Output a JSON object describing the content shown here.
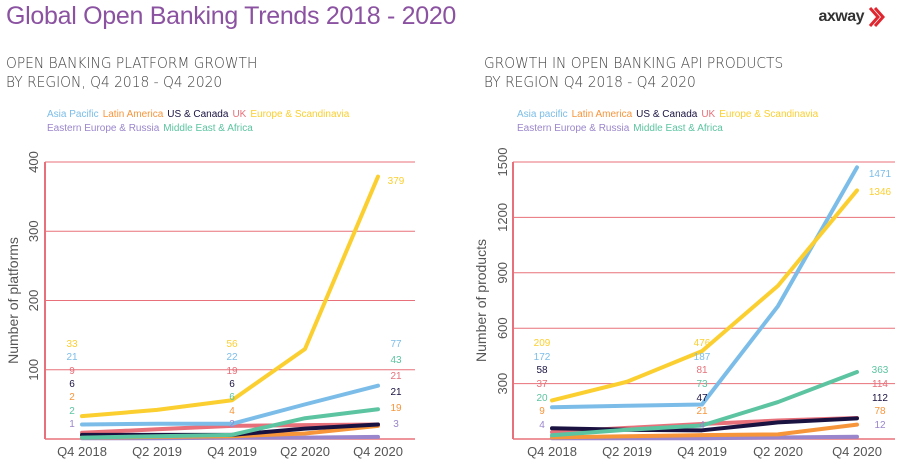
{
  "header": {
    "title": "Global Open Banking Trends 2018 - 2020",
    "logo_text": "axway"
  },
  "colors": {
    "asia": "#7bbde8",
    "latam": "#f7953b",
    "us": "#1a1240",
    "uk": "#e8707a",
    "europe": "#fbcf30",
    "ee": "#9a86cc",
    "mea": "#5cc4a0",
    "grid": "#e8707a"
  },
  "chart_data": [
    {
      "type": "line",
      "title": "OPEN BANKING PLATFORM GROWTH",
      "subtitle": "BY REGION, Q4 2018 - Q4 2020",
      "ylabel": "Number of platforms",
      "xlabel": "",
      "categories": [
        "Q4 2018",
        "Q2 2019",
        "Q4 2019",
        "Q2 2020",
        "Q4 2020"
      ],
      "ylim": [
        0,
        400
      ],
      "yticks": [
        100,
        200,
        300,
        400
      ],
      "grid": true,
      "legend": "top-left",
      "series": [
        {
          "name": "Asia Pacific",
          "key": "asia",
          "values": [
            21,
            22,
            22,
            50,
            77
          ]
        },
        {
          "name": "Latin America",
          "key": "latam",
          "values": [
            2,
            3,
            4,
            8,
            19
          ]
        },
        {
          "name": "US & Canada",
          "key": "us",
          "values": [
            6,
            6,
            6,
            15,
            21
          ]
        },
        {
          "name": "UK",
          "key": "uk",
          "values": [
            9,
            14,
            19,
            20,
            21
          ]
        },
        {
          "name": "Europe & Scandinavia",
          "key": "europe",
          "values": [
            33,
            42,
            56,
            130,
            379
          ]
        },
        {
          "name": "Eastern Europe & Russia",
          "key": "ee",
          "values": [
            1,
            1,
            2,
            2,
            3
          ]
        },
        {
          "name": "Middle East & Africa",
          "key": "mea",
          "values": [
            2,
            4,
            6,
            30,
            43
          ]
        }
      ]
    },
    {
      "type": "line",
      "title": "GROWTH IN OPEN BANKING API PRODUCTS",
      "subtitle": "BY REGION  Q4 2018 - Q4 2020",
      "ylabel": "Number of products",
      "xlabel": "",
      "categories": [
        "Q4 2018",
        "Q2 2019",
        "Q4 2019",
        "Q2 2020",
        "Q4 2020"
      ],
      "ylim": [
        0,
        1500
      ],
      "yticks": [
        300,
        600,
        900,
        1200,
        1500
      ],
      "grid": true,
      "legend": "top-left",
      "series": [
        {
          "name": "Asia pacific",
          "key": "asia",
          "values": [
            172,
            180,
            187,
            720,
            1471
          ]
        },
        {
          "name": "Latin America",
          "key": "latam",
          "values": [
            9,
            15,
            21,
            25,
            78
          ]
        },
        {
          "name": "US & Canada",
          "key": "us",
          "values": [
            58,
            50,
            47,
            90,
            112
          ]
        },
        {
          "name": "UK",
          "key": "uk",
          "values": [
            37,
            60,
            81,
            100,
            114
          ]
        },
        {
          "name": "Europe & Scandinavia",
          "key": "europe",
          "values": [
            209,
            310,
            476,
            830,
            1346
          ]
        },
        {
          "name": "Eastern Europe & Russia",
          "key": "ee",
          "values": [
            4,
            4,
            4,
            8,
            12
          ]
        },
        {
          "name": "Middle East & Africa",
          "key": "mea",
          "values": [
            20,
            50,
            73,
            200,
            363
          ]
        }
      ]
    }
  ]
}
